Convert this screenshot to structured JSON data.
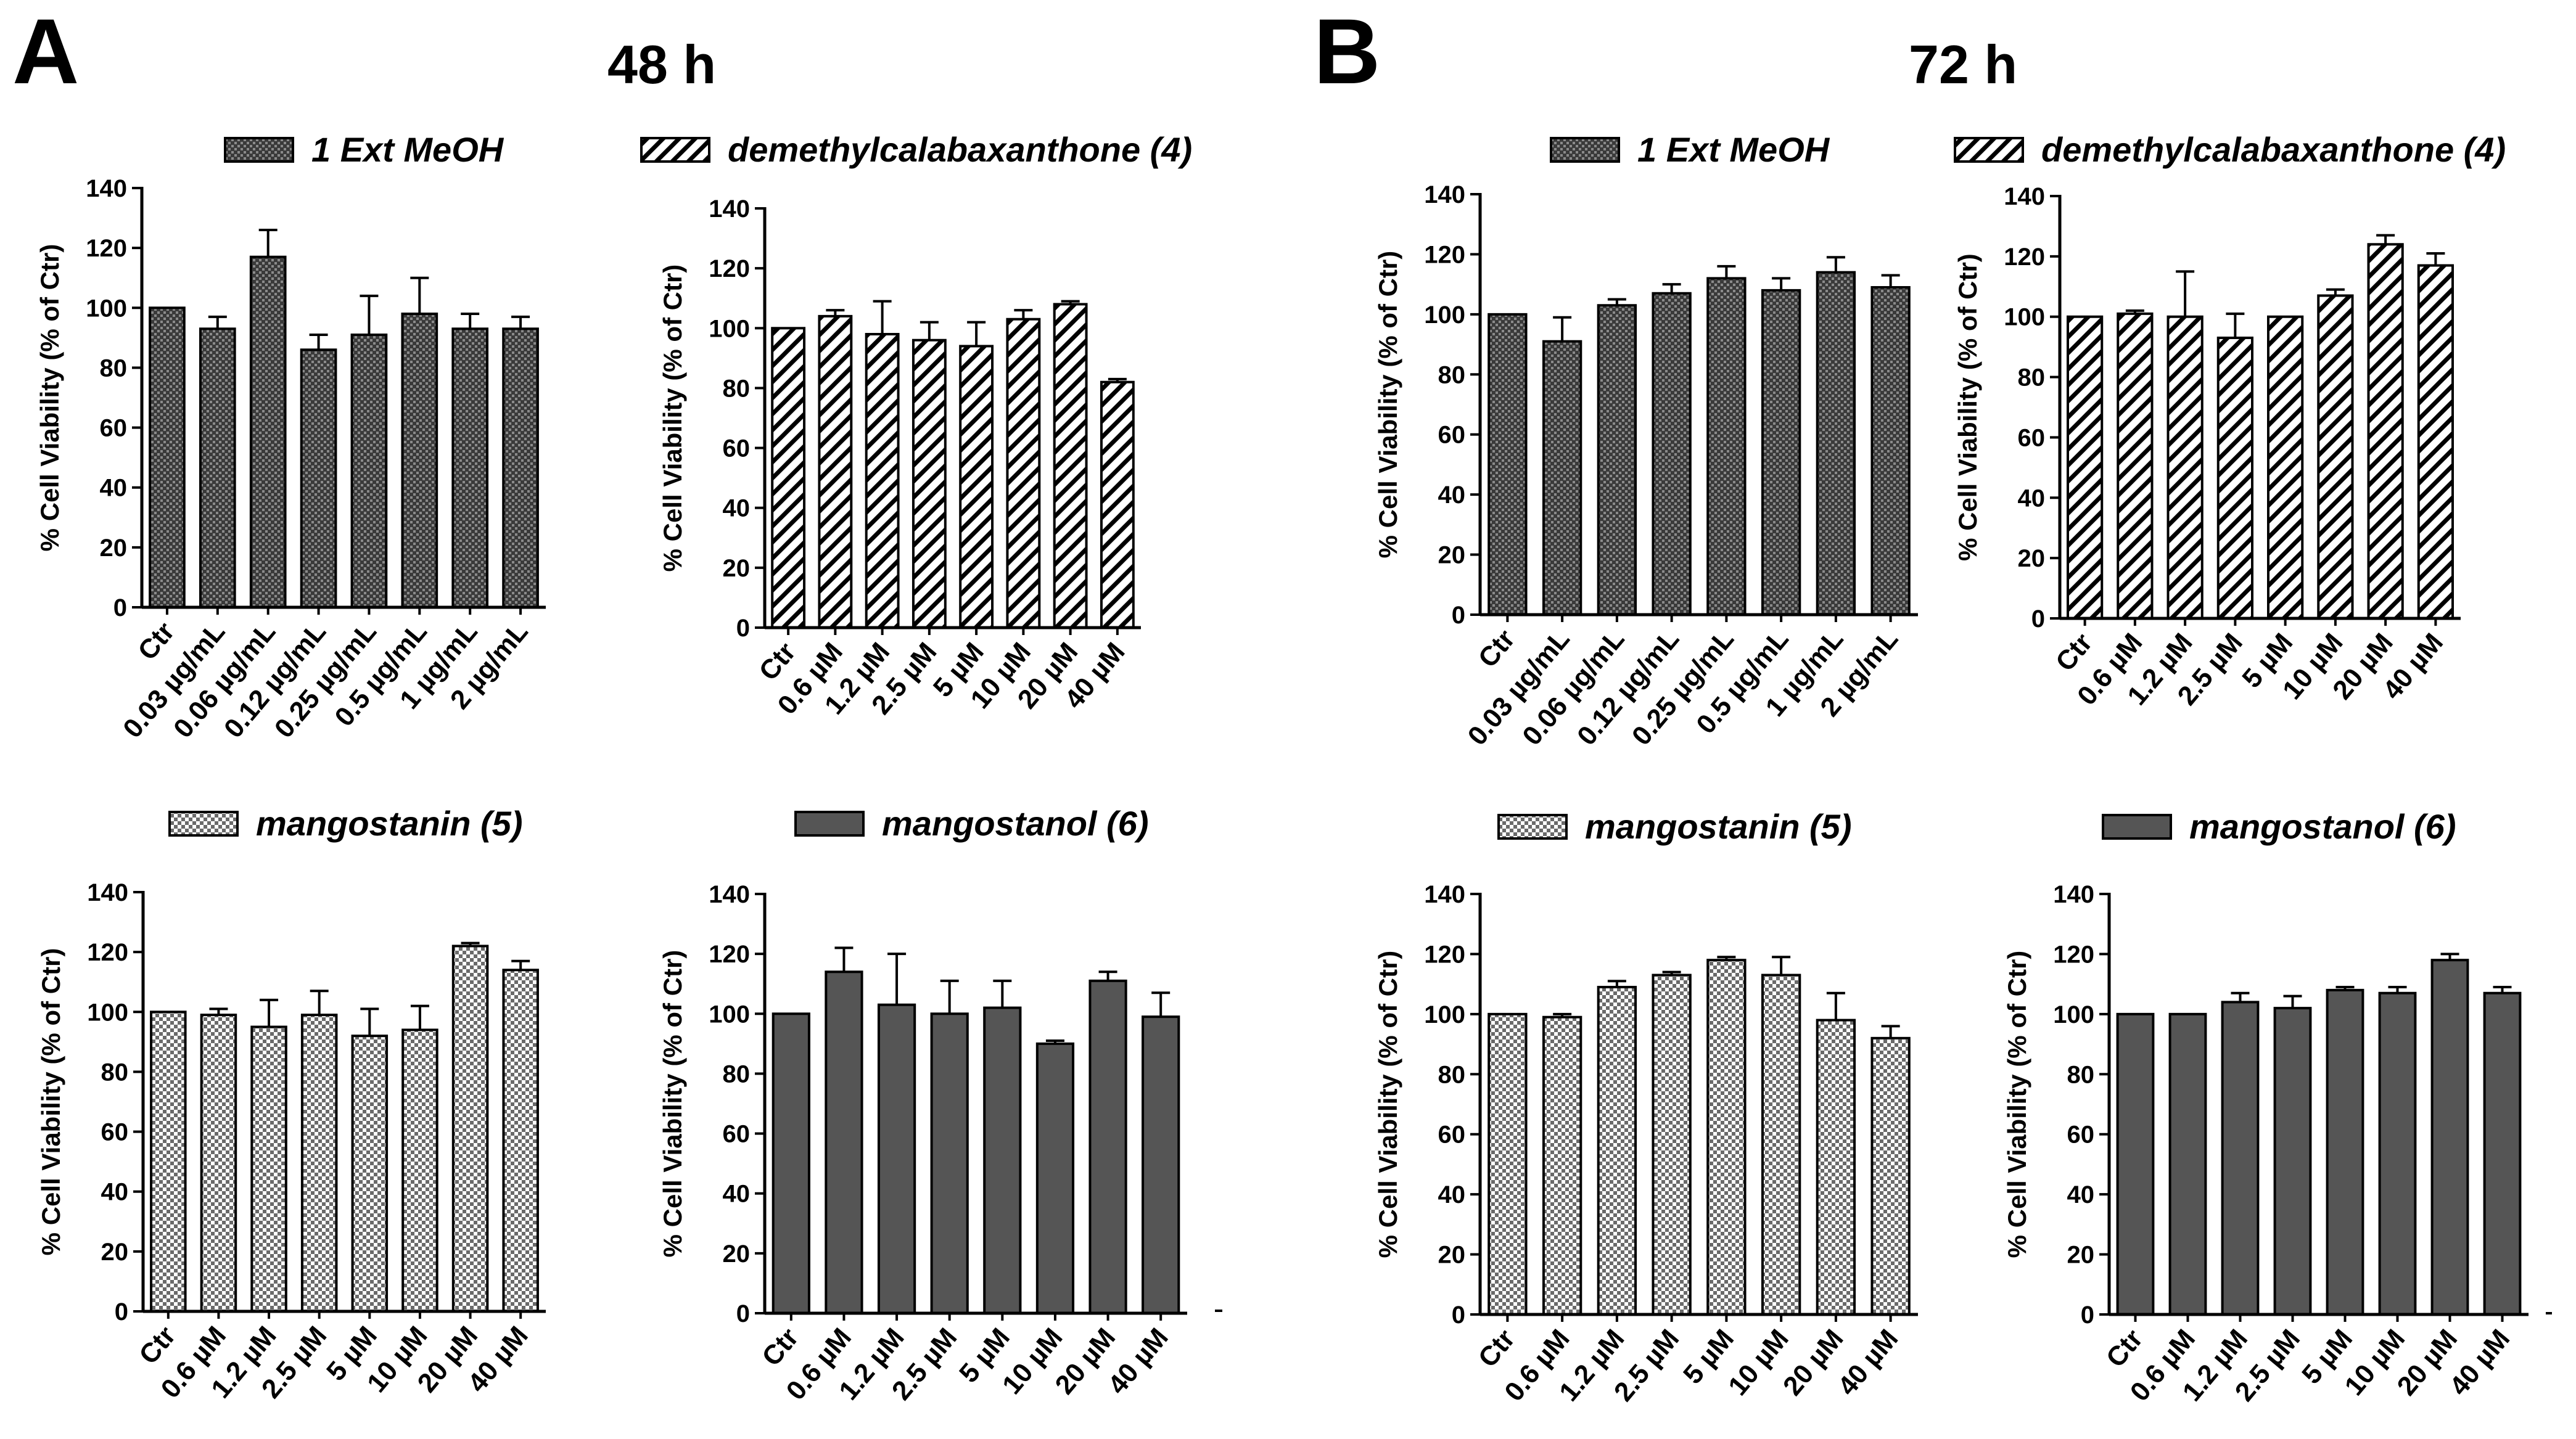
{
  "panels": [
    {
      "letter": "A",
      "title": "48 h"
    },
    {
      "letter": "B",
      "title": "72 h"
    }
  ],
  "chart_data": [
    {
      "type": "bar",
      "panel": "A",
      "time": "48 h",
      "title": "1 Ext MeOH",
      "legend": "1 Ext MeOH",
      "pattern": "dots",
      "ylabel": "% Cell Viability (% of Ctr)",
      "xlabel": "",
      "ylim": [
        0,
        140
      ],
      "yticks": [
        0,
        20,
        40,
        60,
        80,
        100,
        120,
        140
      ],
      "categories": [
        "Ctr",
        "0.03 µg/mL",
        "0.06 µg/mL",
        "0.12 µg/mL",
        "0.25 µg/mL",
        "0.5 µg/mL",
        "1 µg/mL",
        "2 µg/mL"
      ],
      "values": [
        100,
        93,
        117,
        86,
        91,
        98,
        93,
        93
      ],
      "errors": [
        0,
        4,
        9,
        5,
        13,
        12,
        5,
        4
      ]
    },
    {
      "type": "bar",
      "panel": "A",
      "time": "48 h",
      "title": "demethylcalabaxanthone (4)",
      "legend": "demethylcalabaxanthone (4)",
      "pattern": "stripes",
      "ylabel": "% Cell Viability (% of Ctr)",
      "xlabel": "",
      "ylim": [
        0,
        140
      ],
      "yticks": [
        0,
        20,
        40,
        60,
        80,
        100,
        120,
        140
      ],
      "categories": [
        "Ctr",
        "0.6 µM",
        "1.2 µM",
        "2.5 µM",
        "5 µM",
        "10 µM",
        "20 µM",
        "40 µM"
      ],
      "values": [
        100,
        104,
        98,
        96,
        94,
        103,
        108,
        82
      ],
      "errors": [
        0,
        2,
        11,
        6,
        8,
        3,
        1,
        1
      ]
    },
    {
      "type": "bar",
      "panel": "A",
      "time": "48 h",
      "title": "mangostanin (5)",
      "legend": "mangostanin (5)",
      "pattern": "check",
      "ylabel": "% Cell Viability (% of Ctr)",
      "xlabel": "",
      "ylim": [
        0,
        140
      ],
      "yticks": [
        0,
        20,
        40,
        60,
        80,
        100,
        120,
        140
      ],
      "categories": [
        "Ctr",
        "0.6 µM",
        "1.2 µM",
        "2.5 µM",
        "5 µM",
        "10 µM",
        "20 µM",
        "40 µM"
      ],
      "values": [
        100,
        99,
        95,
        99,
        92,
        94,
        122,
        114
      ],
      "errors": [
        0,
        2,
        9,
        8,
        9,
        8,
        1,
        3
      ]
    },
    {
      "type": "bar",
      "panel": "A",
      "time": "48 h",
      "title": "mangostanol (6)",
      "legend": "mangostanol (6)",
      "pattern": "solid",
      "ylabel": "% Cell Viability (% of Ctr)",
      "xlabel": "",
      "ylim": [
        0,
        140
      ],
      "yticks": [
        0,
        20,
        40,
        60,
        80,
        100,
        120,
        140
      ],
      "categories": [
        "Ctr",
        "0.6 µM",
        "1.2 µM",
        "2.5 µM",
        "5 µM",
        "10 µM",
        "20 µM",
        "40 µM"
      ],
      "values": [
        100,
        114,
        103,
        100,
        102,
        90,
        111,
        99
      ],
      "errors": [
        0,
        8,
        17,
        11,
        9,
        1,
        3,
        8
      ]
    },
    {
      "type": "bar",
      "panel": "B",
      "time": "72 h",
      "title": "1 Ext MeOH",
      "legend": "1 Ext MeOH",
      "pattern": "dots",
      "ylabel": "% Cell Viability (% of Ctr)",
      "xlabel": "",
      "ylim": [
        0,
        140
      ],
      "yticks": [
        0,
        20,
        40,
        60,
        80,
        100,
        120,
        140
      ],
      "categories": [
        "Ctr",
        "0.03 µg/mL",
        "0.06 µg/mL",
        "0.12 µg/mL",
        "0.25 µg/mL",
        "0.5 µg/mL",
        "1 µg/mL",
        "2 µg/mL"
      ],
      "values": [
        100,
        91,
        103,
        107,
        112,
        108,
        114,
        109
      ],
      "errors": [
        0,
        8,
        2,
        3,
        4,
        4,
        5,
        4
      ]
    },
    {
      "type": "bar",
      "panel": "B",
      "time": "72 h",
      "title": "demethylcalabaxanthone (4)",
      "legend": "demethylcalabaxanthone (4)",
      "pattern": "stripes",
      "ylabel": "% Cell Viability (% of Ctr)",
      "xlabel": "",
      "ylim": [
        0,
        140
      ],
      "yticks": [
        0,
        20,
        40,
        60,
        80,
        100,
        120,
        140
      ],
      "categories": [
        "Ctr",
        "0.6 µM",
        "1.2 µM",
        "2.5 µM",
        "5 µM",
        "10 µM",
        "20 µM",
        "40 µM"
      ],
      "values": [
        100,
        101,
        100,
        93,
        100,
        107,
        124,
        117
      ],
      "errors": [
        0,
        1,
        15,
        8,
        0,
        2,
        3,
        4
      ]
    },
    {
      "type": "bar",
      "panel": "B",
      "time": "72 h",
      "title": "mangostanin (5)",
      "legend": "mangostanin (5)",
      "pattern": "check",
      "ylabel": "% Cell Viability (% of Ctr)",
      "xlabel": "",
      "ylim": [
        0,
        140
      ],
      "yticks": [
        0,
        20,
        40,
        60,
        80,
        100,
        120,
        140
      ],
      "categories": [
        "Ctr",
        "0.6 µM",
        "1.2 µM",
        "2.5 µM",
        "5 µM",
        "10 µM",
        "20 µM",
        "40 µM"
      ],
      "values": [
        100,
        99,
        109,
        113,
        118,
        113,
        98,
        92
      ],
      "errors": [
        0,
        1,
        2,
        1,
        1,
        6,
        9,
        4
      ]
    },
    {
      "type": "bar",
      "panel": "B",
      "time": "72 h",
      "title": "mangostanol (6)",
      "legend": "mangostanol (6)",
      "pattern": "solid",
      "ylabel": "% Cell Viability (% of Ctr)",
      "xlabel": "",
      "ylim": [
        0,
        140
      ],
      "yticks": [
        0,
        20,
        40,
        60,
        80,
        100,
        120,
        140
      ],
      "categories": [
        "Ctr",
        "0.6 µM",
        "1.2 µM",
        "2.5 µM",
        "5 µM",
        "10 µM",
        "20 µM",
        "40 µM"
      ],
      "values": [
        100,
        100,
        104,
        102,
        108,
        107,
        118,
        107
      ],
      "errors": [
        0,
        0,
        3,
        4,
        1,
        2,
        2,
        2
      ]
    }
  ]
}
